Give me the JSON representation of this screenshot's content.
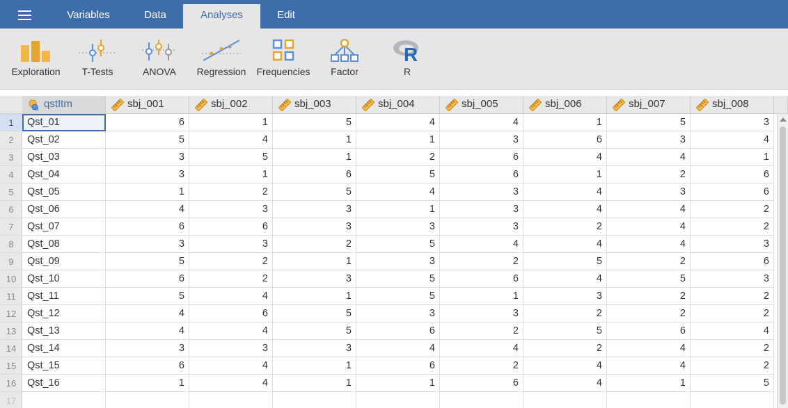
{
  "tabs": [
    {
      "label": "Variables"
    },
    {
      "label": "Data"
    },
    {
      "label": "Analyses"
    },
    {
      "label": "Edit"
    }
  ],
  "active_tab": "Analyses",
  "ribbon": [
    {
      "label": "Exploration",
      "icon": "bar-chart-icon"
    },
    {
      "label": "T-Tests",
      "icon": "ttest-icon"
    },
    {
      "label": "ANOVA",
      "icon": "anova-icon"
    },
    {
      "label": "Regression",
      "icon": "regression-icon"
    },
    {
      "label": "Frequencies",
      "icon": "frequencies-icon"
    },
    {
      "label": "Factor",
      "icon": "factor-icon"
    },
    {
      "label": "R",
      "icon": "r-logo-icon"
    }
  ],
  "columns": [
    "qstItm",
    "sbj_001",
    "sbj_002",
    "sbj_003",
    "sbj_004",
    "sbj_005",
    "sbj_006",
    "sbj_007",
    "sbj_008"
  ],
  "rows": [
    {
      "num": "1",
      "label": "Qst_01",
      "values": [
        "6",
        "1",
        "5",
        "4",
        "4",
        "1",
        "5",
        "3"
      ]
    },
    {
      "num": "2",
      "label": "Qst_02",
      "values": [
        "5",
        "4",
        "1",
        "1",
        "3",
        "6",
        "3",
        "4"
      ]
    },
    {
      "num": "3",
      "label": "Qst_03",
      "values": [
        "3",
        "5",
        "1",
        "2",
        "6",
        "4",
        "4",
        "1"
      ]
    },
    {
      "num": "4",
      "label": "Qst_04",
      "values": [
        "3",
        "1",
        "6",
        "5",
        "6",
        "1",
        "2",
        "6"
      ]
    },
    {
      "num": "5",
      "label": "Qst_05",
      "values": [
        "1",
        "2",
        "5",
        "4",
        "3",
        "4",
        "3",
        "6"
      ]
    },
    {
      "num": "6",
      "label": "Qst_06",
      "values": [
        "4",
        "3",
        "3",
        "1",
        "3",
        "4",
        "4",
        "2"
      ]
    },
    {
      "num": "7",
      "label": "Qst_07",
      "values": [
        "6",
        "6",
        "3",
        "3",
        "3",
        "2",
        "4",
        "2"
      ]
    },
    {
      "num": "8",
      "label": "Qst_08",
      "values": [
        "3",
        "3",
        "2",
        "5",
        "4",
        "4",
        "4",
        "3"
      ]
    },
    {
      "num": "9",
      "label": "Qst_09",
      "values": [
        "5",
        "2",
        "1",
        "3",
        "2",
        "5",
        "2",
        "6"
      ]
    },
    {
      "num": "10",
      "label": "Qst_10",
      "values": [
        "6",
        "2",
        "3",
        "5",
        "6",
        "4",
        "5",
        "3"
      ]
    },
    {
      "num": "11",
      "label": "Qst_11",
      "values": [
        "5",
        "4",
        "1",
        "5",
        "1",
        "3",
        "2",
        "2"
      ]
    },
    {
      "num": "12",
      "label": "Qst_12",
      "values": [
        "4",
        "6",
        "5",
        "3",
        "3",
        "2",
        "2",
        "2"
      ]
    },
    {
      "num": "13",
      "label": "Qst_13",
      "values": [
        "4",
        "4",
        "5",
        "6",
        "2",
        "5",
        "6",
        "4"
      ]
    },
    {
      "num": "14",
      "label": "Qst_14",
      "values": [
        "3",
        "3",
        "3",
        "4",
        "4",
        "2",
        "4",
        "2"
      ]
    },
    {
      "num": "15",
      "label": "Qst_15",
      "values": [
        "6",
        "4",
        "1",
        "6",
        "2",
        "4",
        "4",
        "2"
      ]
    },
    {
      "num": "16",
      "label": "Qst_16",
      "values": [
        "1",
        "4",
        "1",
        "1",
        "6",
        "4",
        "1",
        "5"
      ]
    }
  ],
  "empty_row_num": "17",
  "colors": {
    "accent": "#3e6da9",
    "ribbon_bg": "#e6e6e6",
    "ordinal_icon": "#e5a52d",
    "nominal_icon": "#5b8fd9"
  }
}
